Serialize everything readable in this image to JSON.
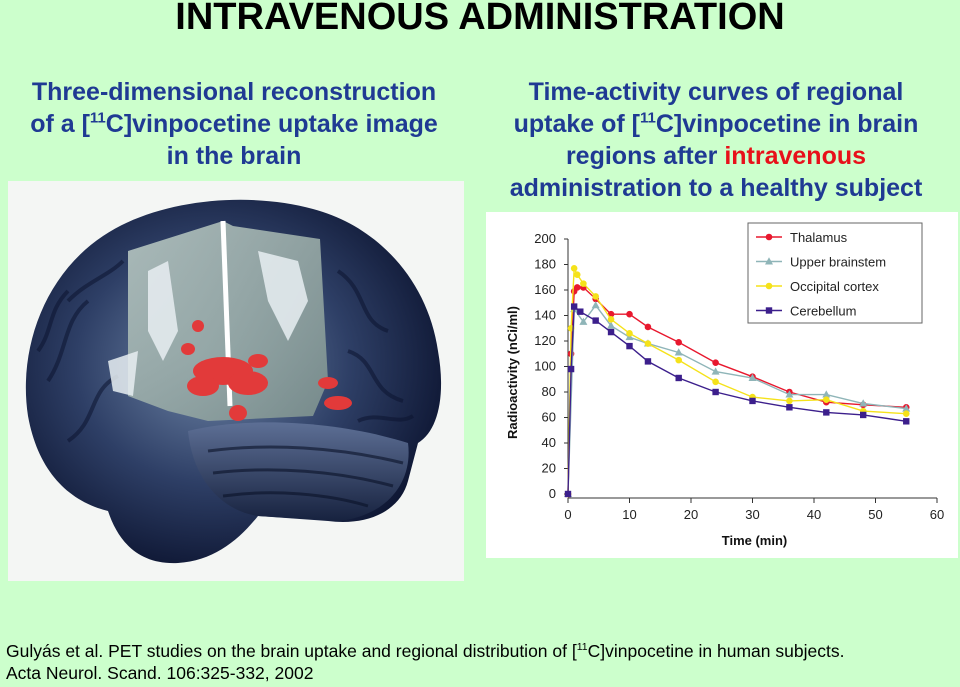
{
  "title": "INTRAVENOUS ADMINISTRATION",
  "left_caption": {
    "line1": "Three-dimensional reconstruction",
    "line2_pre": "of a [",
    "line2_sup": "11",
    "line2_post": "C]vinpocetine uptake image",
    "line3": "in the brain"
  },
  "right_caption": {
    "line1": "Time-activity curves of regional",
    "line2_pre": "uptake of [",
    "line2_sup": "11",
    "line2_post": "C]vinpocetine in brain",
    "line3_pre": "regions after ",
    "line3_highlight": "intravenous",
    "line4": "administration to a healthy subject"
  },
  "colors": {
    "background": "#ccffcc",
    "caption_blue": "#1f3a93",
    "highlight_red": "#e8101a"
  },
  "citation": {
    "line1_pre": "Gulyás et al. PET studies on the brain uptake and regional distribution of [",
    "line1_sup": "11",
    "line1_post": "C]vinpocetine in human subjects.",
    "line2": "Acta Neurol. Scand. 106:325-332, 2002"
  },
  "chart_data": {
    "type": "line",
    "xlabel": "Time (min)",
    "ylabel": "Radioactivity (nCi/ml)",
    "xlim": [
      0,
      60
    ],
    "ylim": [
      0,
      200
    ],
    "xticks": [
      0,
      10,
      20,
      30,
      40,
      50,
      60
    ],
    "yticks": [
      0,
      20,
      40,
      60,
      80,
      100,
      120,
      140,
      160,
      180,
      200
    ],
    "grid": false,
    "legend_position": "top-right",
    "series": [
      {
        "name": "Thalamus",
        "color": "#e8182e",
        "marker": "circle",
        "points": [
          [
            0,
            0
          ],
          [
            0.5,
            110
          ],
          [
            1,
            159
          ],
          [
            1.5,
            162
          ],
          [
            2.5,
            162
          ],
          [
            4.5,
            153
          ],
          [
            7,
            141
          ],
          [
            10,
            141
          ],
          [
            13,
            131
          ],
          [
            18,
            119
          ],
          [
            24,
            103
          ],
          [
            30,
            92
          ],
          [
            36,
            80
          ],
          [
            42,
            72
          ],
          [
            48,
            70
          ],
          [
            55,
            68
          ]
        ]
      },
      {
        "name": "Upper brainstem",
        "color": "#8fb5b8",
        "marker": "triangle",
        "points": [
          [
            0,
            0
          ],
          [
            1,
            145
          ],
          [
            2.5,
            135
          ],
          [
            4.5,
            148
          ],
          [
            7,
            132
          ],
          [
            10,
            123
          ],
          [
            13,
            118
          ],
          [
            18,
            111
          ],
          [
            24,
            96
          ],
          [
            30,
            91
          ],
          [
            36,
            78
          ],
          [
            42,
            78
          ],
          [
            48,
            71
          ],
          [
            55,
            67
          ]
        ]
      },
      {
        "name": "Occipital cortex",
        "color": "#f5e21a",
        "marker": "circle",
        "points": [
          [
            0,
            0
          ],
          [
            0.5,
            130
          ],
          [
            1,
            177
          ],
          [
            1.5,
            172
          ],
          [
            2.5,
            165
          ],
          [
            4.5,
            155
          ],
          [
            7,
            137
          ],
          [
            10,
            126
          ],
          [
            13,
            118
          ],
          [
            18,
            105
          ],
          [
            24,
            88
          ],
          [
            30,
            76
          ],
          [
            36,
            73
          ],
          [
            42,
            74
          ],
          [
            48,
            65
          ],
          [
            55,
            63
          ]
        ]
      },
      {
        "name": "Cerebellum",
        "color": "#3c1f8c",
        "marker": "square",
        "points": [
          [
            0,
            0
          ],
          [
            0.5,
            98
          ],
          [
            1,
            147
          ],
          [
            2,
            143
          ],
          [
            4.5,
            136
          ],
          [
            7,
            127
          ],
          [
            10,
            116
          ],
          [
            13,
            104
          ],
          [
            18,
            91
          ],
          [
            24,
            80
          ],
          [
            30,
            73
          ],
          [
            36,
            68
          ],
          [
            42,
            64
          ],
          [
            48,
            62
          ],
          [
            55,
            57
          ]
        ]
      }
    ]
  }
}
